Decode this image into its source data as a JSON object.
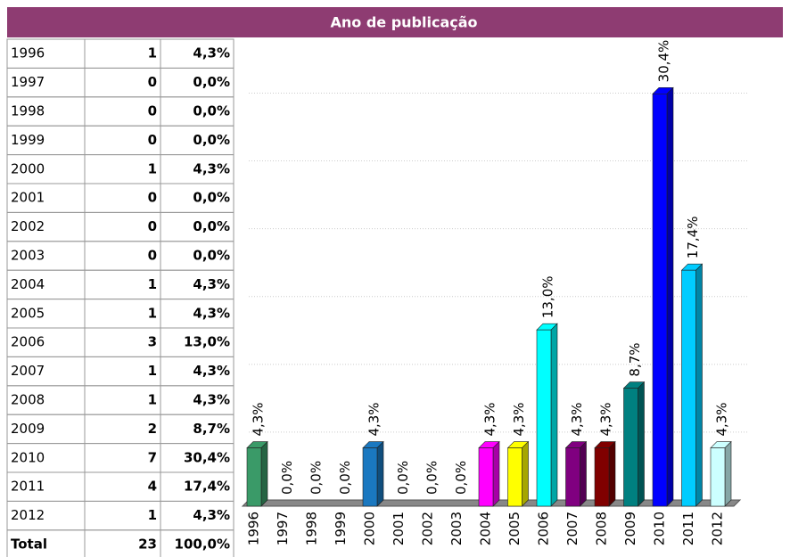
{
  "header": {
    "title": "Ano de publicação"
  },
  "table": {
    "rows": [
      [
        "1996",
        1,
        "4,3%"
      ],
      [
        "1997",
        0,
        "0,0%"
      ],
      [
        "1998",
        0,
        "0,0%"
      ],
      [
        "1999",
        0,
        "0,0%"
      ],
      [
        "2000",
        1,
        "4,3%"
      ],
      [
        "2001",
        0,
        "0,0%"
      ],
      [
        "2002",
        0,
        "0,0%"
      ],
      [
        "2003",
        0,
        "0,0%"
      ],
      [
        "2004",
        1,
        "4,3%"
      ],
      [
        "2005",
        1,
        "4,3%"
      ],
      [
        "2006",
        3,
        "13,0%"
      ],
      [
        "2007",
        1,
        "4,3%"
      ],
      [
        "2008",
        1,
        "4,3%"
      ],
      [
        "2009",
        2,
        "8,7%"
      ],
      [
        "2010",
        7,
        "30,4%"
      ],
      [
        "2011",
        4,
        "17,4%"
      ],
      [
        "2012",
        1,
        "4,3%"
      ]
    ],
    "total": [
      "Total",
      23,
      "100,0%"
    ]
  },
  "chart_data": {
    "type": "bar3d",
    "categories": [
      "1996",
      "1997",
      "1998",
      "1999",
      "2000",
      "2001",
      "2002",
      "2003",
      "2004",
      "2005",
      "2006",
      "2007",
      "2008",
      "2009",
      "2010",
      "2011",
      "2012"
    ],
    "values": [
      4.3,
      0,
      0,
      0,
      4.3,
      0,
      0,
      0,
      4.3,
      4.3,
      13.0,
      4.3,
      4.3,
      8.7,
      30.4,
      17.4,
      4.3
    ],
    "value_labels": [
      "4,3%",
      "0,0%",
      "0,0%",
      "0,0%",
      "4,3%",
      "0,0%",
      "0,0%",
      "0,0%",
      "4,3%",
      "4,3%",
      "13,0%",
      "4,3%",
      "4,3%",
      "8,7%",
      "30,4%",
      "17,4%",
      "4,3%"
    ],
    "colors": [
      "#3a9a68",
      null,
      null,
      null,
      "#1a78c0",
      null,
      null,
      null,
      "#ff00ff",
      "#ffff00",
      "#00ffff",
      "#800080",
      "#800000",
      "#008080",
      "#0000ff",
      "#00ccff",
      "#ccffff"
    ],
    "ylim": [
      0,
      32
    ],
    "yticks": [
      5,
      10,
      15,
      20,
      25,
      30
    ],
    "grid": true
  }
}
